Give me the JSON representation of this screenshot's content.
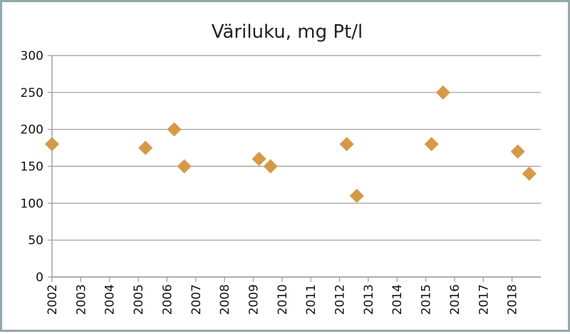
{
  "chart_data": {
    "type": "scatter",
    "title": "Väriluku, mg Pt/l",
    "xlabel": "",
    "ylabel": "",
    "xlim": [
      2002,
      2019
    ],
    "ylim": [
      0,
      300
    ],
    "y_ticks": [
      0,
      50,
      100,
      150,
      200,
      250,
      300
    ],
    "x_ticks": [
      "2002",
      "2003",
      "2004",
      "2005",
      "2006",
      "2007",
      "2008",
      "2009",
      "2010",
      "2011",
      "2012",
      "2013",
      "2014",
      "2015",
      "2016",
      "2017",
      "2018"
    ],
    "grid": "horizontal",
    "legend": "none",
    "marker": "diamond",
    "marker_color": "#d69a47",
    "points": [
      {
        "x": 2002.0,
        "y": 180
      },
      {
        "x": 2005.25,
        "y": 175
      },
      {
        "x": 2006.25,
        "y": 200
      },
      {
        "x": 2006.6,
        "y": 150
      },
      {
        "x": 2009.2,
        "y": 160
      },
      {
        "x": 2009.6,
        "y": 150
      },
      {
        "x": 2012.25,
        "y": 180
      },
      {
        "x": 2012.6,
        "y": 110
      },
      {
        "x": 2015.2,
        "y": 180
      },
      {
        "x": 2015.6,
        "y": 250
      },
      {
        "x": 2018.2,
        "y": 170
      },
      {
        "x": 2018.6,
        "y": 140
      }
    ]
  }
}
